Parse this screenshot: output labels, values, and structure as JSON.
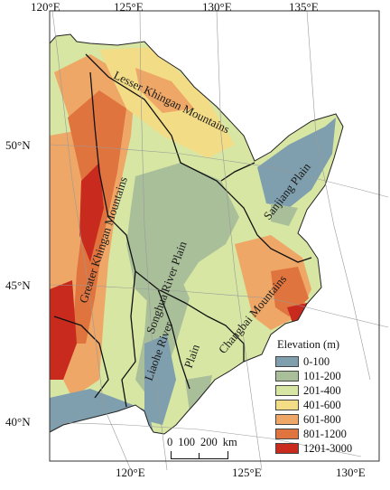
{
  "map": {
    "top_ticks": [
      "120°E",
      "125°E",
      "130°E",
      "135°E"
    ],
    "bottom_ticks": [
      "120°E",
      "125°E",
      "130°E"
    ],
    "left_ticks": [
      "50°N",
      "45°N",
      "40°N"
    ],
    "region_labels": [
      "Lesser Khingan Mountains",
      "Greater Khingan Mountains",
      "Sanjiang Plain",
      "Songhua River Plain",
      "Liaohe River",
      "Plain",
      "Changbai Mountains"
    ]
  },
  "legend": {
    "title": "Elevation (m)",
    "items": [
      {
        "label": "0-100",
        "color": "#7f9fae"
      },
      {
        "label": "101-200",
        "color": "#a9bf9a"
      },
      {
        "label": "201-400",
        "color": "#d7e6a2"
      },
      {
        "label": "401-600",
        "color": "#f3dc86"
      },
      {
        "label": "601-800",
        "color": "#eea766"
      },
      {
        "label": "801-1200",
        "color": "#e0743e"
      },
      {
        "label": "1201-3000",
        "color": "#c92a1e"
      }
    ]
  },
  "scalebar": {
    "labels": [
      "0",
      "100",
      "200",
      "km"
    ]
  }
}
